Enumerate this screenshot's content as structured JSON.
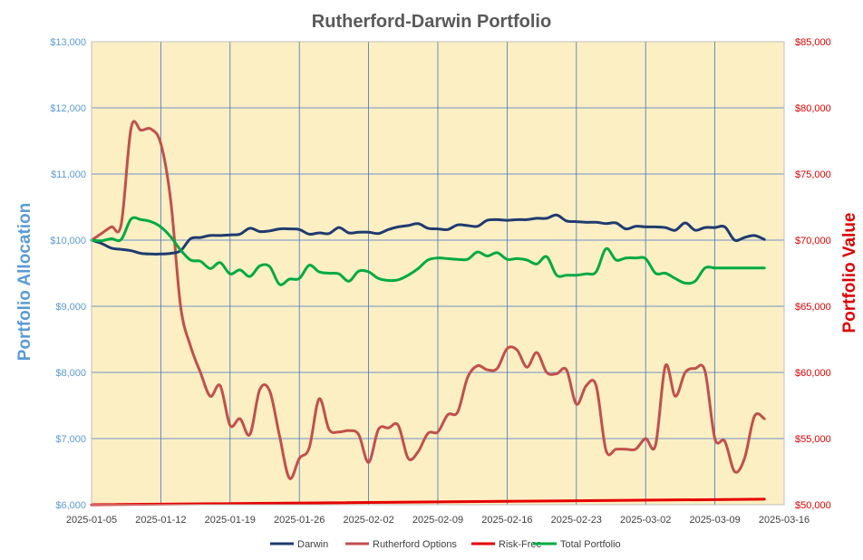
{
  "chart_data": {
    "type": "line",
    "title": "Rutherford-Darwin Portfolio",
    "ylabel_left": "Portfolio Allocation",
    "ylabel_right": "Portfolio Value",
    "ylim_left": [
      6000,
      13000
    ],
    "ylim_right": [
      50000,
      85000
    ],
    "y_ticks_left": [
      "$6,000",
      "$7,000",
      "$8,000",
      "$9,000",
      "$10,000",
      "$11,000",
      "$12,000",
      "$13,000"
    ],
    "y_ticks_right": [
      "$50,000",
      "$55,000",
      "$60,000",
      "$65,000",
      "$70,000",
      "$75,000",
      "$80,000",
      "$85,000"
    ],
    "x_range": [
      "2025-01-05",
      "2025-03-16"
    ],
    "x_ticks": [
      "2025-01-05",
      "2025-01-12",
      "2025-01-19",
      "2025-01-26",
      "2025-02-02",
      "2025-02-09",
      "2025-02-16",
      "2025-02-23",
      "2025-03-02",
      "2025-03-09",
      "2025-03-16"
    ],
    "grid": true,
    "legend_position": "bottom",
    "colors": {
      "plot_background": "#FCEFC3",
      "grid": "#4472C4",
      "left_axis": "#5B9BD5",
      "right_axis": "#E00000",
      "title": "#595959"
    },
    "series": [
      {
        "name": "Darwin",
        "axis": "left",
        "color": "#1F3B70",
        "x": [
          "2025-01-05",
          "2025-01-06",
          "2025-01-07",
          "2025-01-08",
          "2025-01-09",
          "2025-01-10",
          "2025-01-11",
          "2025-01-12",
          "2025-01-13",
          "2025-01-14",
          "2025-01-15",
          "2025-01-16",
          "2025-01-17",
          "2025-01-18",
          "2025-01-19",
          "2025-01-20",
          "2025-01-21",
          "2025-01-22",
          "2025-01-23",
          "2025-01-24",
          "2025-01-25",
          "2025-01-26",
          "2025-01-27",
          "2025-01-28",
          "2025-01-29",
          "2025-01-30",
          "2025-01-31",
          "2025-02-01",
          "2025-02-02",
          "2025-02-03",
          "2025-02-04",
          "2025-02-05",
          "2025-02-06",
          "2025-02-07",
          "2025-02-08",
          "2025-02-09",
          "2025-02-10",
          "2025-02-11",
          "2025-02-12",
          "2025-02-13",
          "2025-02-14",
          "2025-02-15",
          "2025-02-16",
          "2025-02-17",
          "2025-02-18",
          "2025-02-19",
          "2025-02-20",
          "2025-02-21",
          "2025-02-22",
          "2025-02-23",
          "2025-02-24",
          "2025-02-25",
          "2025-02-26",
          "2025-02-27",
          "2025-02-28",
          "2025-03-01",
          "2025-03-02",
          "2025-03-03",
          "2025-03-04",
          "2025-03-05",
          "2025-03-06",
          "2025-03-07",
          "2025-03-08",
          "2025-03-09",
          "2025-03-10",
          "2025-03-11",
          "2025-03-12",
          "2025-03-13",
          "2025-03-14"
        ],
        "values": [
          10000,
          9950,
          9880,
          9860,
          9840,
          9800,
          9790,
          9790,
          9800,
          9840,
          10020,
          10040,
          10070,
          10070,
          10080,
          10090,
          10180,
          10130,
          10140,
          10170,
          10170,
          10160,
          10090,
          10110,
          10100,
          10190,
          10110,
          10120,
          10120,
          10100,
          10160,
          10200,
          10220,
          10250,
          10180,
          10170,
          10160,
          10230,
          10220,
          10210,
          10300,
          10310,
          10300,
          10310,
          10310,
          10330,
          10330,
          10380,
          10290,
          10280,
          10270,
          10270,
          10250,
          10260,
          10170,
          10210,
          10200,
          10200,
          10190,
          10150,
          10260,
          10150,
          10190,
          10190,
          10200,
          10000,
          10040,
          10070,
          10010
        ]
      },
      {
        "name": "Rutherford Options",
        "axis": "right",
        "color": "#C0504D",
        "x": [
          "2025-01-05",
          "2025-01-06",
          "2025-01-07",
          "2025-01-08",
          "2025-01-09",
          "2025-01-10",
          "2025-01-11",
          "2025-01-12",
          "2025-01-13",
          "2025-01-14",
          "2025-01-15",
          "2025-01-16",
          "2025-01-17",
          "2025-01-18",
          "2025-01-19",
          "2025-01-20",
          "2025-01-21",
          "2025-01-22",
          "2025-01-23",
          "2025-01-24",
          "2025-01-25",
          "2025-01-26",
          "2025-01-27",
          "2025-01-28",
          "2025-01-29",
          "2025-01-30",
          "2025-01-31",
          "2025-02-01",
          "2025-02-02",
          "2025-02-03",
          "2025-02-04",
          "2025-02-05",
          "2025-02-06",
          "2025-02-07",
          "2025-02-08",
          "2025-02-09",
          "2025-02-10",
          "2025-02-11",
          "2025-02-12",
          "2025-02-13",
          "2025-02-14",
          "2025-02-15",
          "2025-02-16",
          "2025-02-17",
          "2025-02-18",
          "2025-02-19",
          "2025-02-20",
          "2025-02-21",
          "2025-02-22",
          "2025-02-23",
          "2025-02-24",
          "2025-02-25",
          "2025-02-26",
          "2025-02-27",
          "2025-02-28",
          "2025-03-01",
          "2025-03-02",
          "2025-03-03",
          "2025-03-04",
          "2025-03-05",
          "2025-03-06",
          "2025-03-07",
          "2025-03-08",
          "2025-03-09",
          "2025-03-10",
          "2025-03-11",
          "2025-03-12",
          "2025-03-13",
          "2025-03-14"
        ],
        "values": [
          70000,
          70500,
          71000,
          71200,
          78500,
          78300,
          78400,
          77300,
          73000,
          65000,
          62000,
          60000,
          58200,
          59000,
          56000,
          56500,
          55300,
          58700,
          58600,
          55200,
          52000,
          53500,
          54300,
          58000,
          55700,
          55500,
          55600,
          55300,
          53200,
          55700,
          55800,
          56000,
          53500,
          54000,
          55400,
          55500,
          56800,
          57000,
          59600,
          60500,
          60200,
          60300,
          61800,
          61700,
          60400,
          61500,
          60000,
          59900,
          60200,
          57600,
          59000,
          59000,
          54100,
          54200,
          54200,
          54200,
          55000,
          54500,
          60500,
          58200,
          60000,
          60300,
          60100,
          55000,
          54800,
          52500,
          53500,
          56700,
          56500
        ]
      },
      {
        "name": "Risk-Free",
        "axis": "right",
        "color": "#E60000",
        "x": [
          "2025-01-05",
          "2025-03-14"
        ],
        "values": [
          50000,
          50420
        ]
      },
      {
        "name": "Total Portfolio",
        "axis": "left",
        "color": "#00AA44",
        "x": [
          "2025-01-05",
          "2025-01-06",
          "2025-01-07",
          "2025-01-08",
          "2025-01-09",
          "2025-01-10",
          "2025-01-11",
          "2025-01-12",
          "2025-01-13",
          "2025-01-14",
          "2025-01-15",
          "2025-01-16",
          "2025-01-17",
          "2025-01-18",
          "2025-01-19",
          "2025-01-20",
          "2025-01-21",
          "2025-01-22",
          "2025-01-23",
          "2025-01-24",
          "2025-01-25",
          "2025-01-26",
          "2025-01-27",
          "2025-01-28",
          "2025-01-29",
          "2025-01-30",
          "2025-01-31",
          "2025-02-01",
          "2025-02-02",
          "2025-02-03",
          "2025-02-04",
          "2025-02-05",
          "2025-02-06",
          "2025-02-07",
          "2025-02-08",
          "2025-02-09",
          "2025-02-10",
          "2025-02-11",
          "2025-02-12",
          "2025-02-13",
          "2025-02-14",
          "2025-02-15",
          "2025-02-16",
          "2025-02-17",
          "2025-02-18",
          "2025-02-19",
          "2025-02-20",
          "2025-02-21",
          "2025-02-22",
          "2025-02-23",
          "2025-02-24",
          "2025-02-25",
          "2025-02-26",
          "2025-02-27",
          "2025-02-28",
          "2025-03-01",
          "2025-03-02",
          "2025-03-03",
          "2025-03-04",
          "2025-03-05",
          "2025-03-06",
          "2025-03-07",
          "2025-03-08",
          "2025-03-09",
          "2025-03-10",
          "2025-03-11",
          "2025-03-12",
          "2025-03-13",
          "2025-03-14"
        ],
        "values": [
          10000,
          9990,
          10020,
          10010,
          10320,
          10310,
          10280,
          10200,
          10050,
          9850,
          9700,
          9680,
          9570,
          9660,
          9490,
          9550,
          9450,
          9610,
          9600,
          9330,
          9410,
          9420,
          9620,
          9520,
          9500,
          9490,
          9380,
          9530,
          9520,
          9420,
          9390,
          9400,
          9470,
          9570,
          9700,
          9730,
          9720,
          9710,
          9710,
          9820,
          9760,
          9810,
          9710,
          9720,
          9700,
          9640,
          9750,
          9470,
          9470,
          9470,
          9490,
          9520,
          9870,
          9700,
          9730,
          9730,
          9720,
          9500,
          9500,
          9420,
          9350,
          9380,
          9580,
          9580,
          9580,
          9580,
          9580,
          9580,
          9580
        ]
      }
    ]
  }
}
